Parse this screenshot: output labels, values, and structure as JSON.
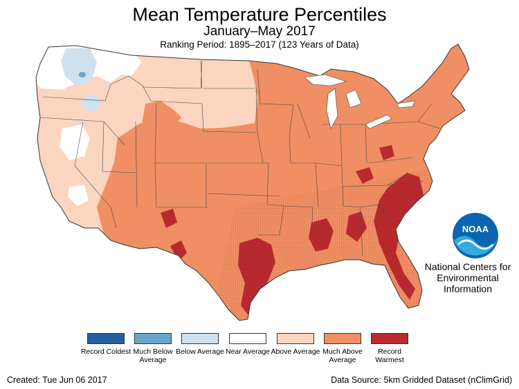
{
  "title": "Mean Temperature Percentiles",
  "subtitle": "January–May 2017",
  "ranking_period": "Ranking Period: 1895–2017 (123 Years of Data)",
  "logo": {
    "text": "NOAA",
    "org_line1": "National Centers for",
    "org_line2": "Environmental",
    "org_line3": "Information"
  },
  "legend": [
    {
      "label": "Record Coldest",
      "color": "#1f5f9e"
    },
    {
      "label": "Much Below Average",
      "color": "#6aa5cc"
    },
    {
      "label": "Below Average",
      "color": "#cfe1ef"
    },
    {
      "label": "Near Average",
      "color": "#ffffff"
    },
    {
      "label": "Above Average",
      "color": "#fbd5bf"
    },
    {
      "label": "Much Above Average",
      "color": "#ef8f63"
    },
    {
      "label": "Record Warmest",
      "color": "#b92a2f"
    }
  ],
  "footer": {
    "created": "Created: Tue Jun 06 2017",
    "source": "Data Source: 5km Gridded Dataset (nClimGrid)"
  }
}
